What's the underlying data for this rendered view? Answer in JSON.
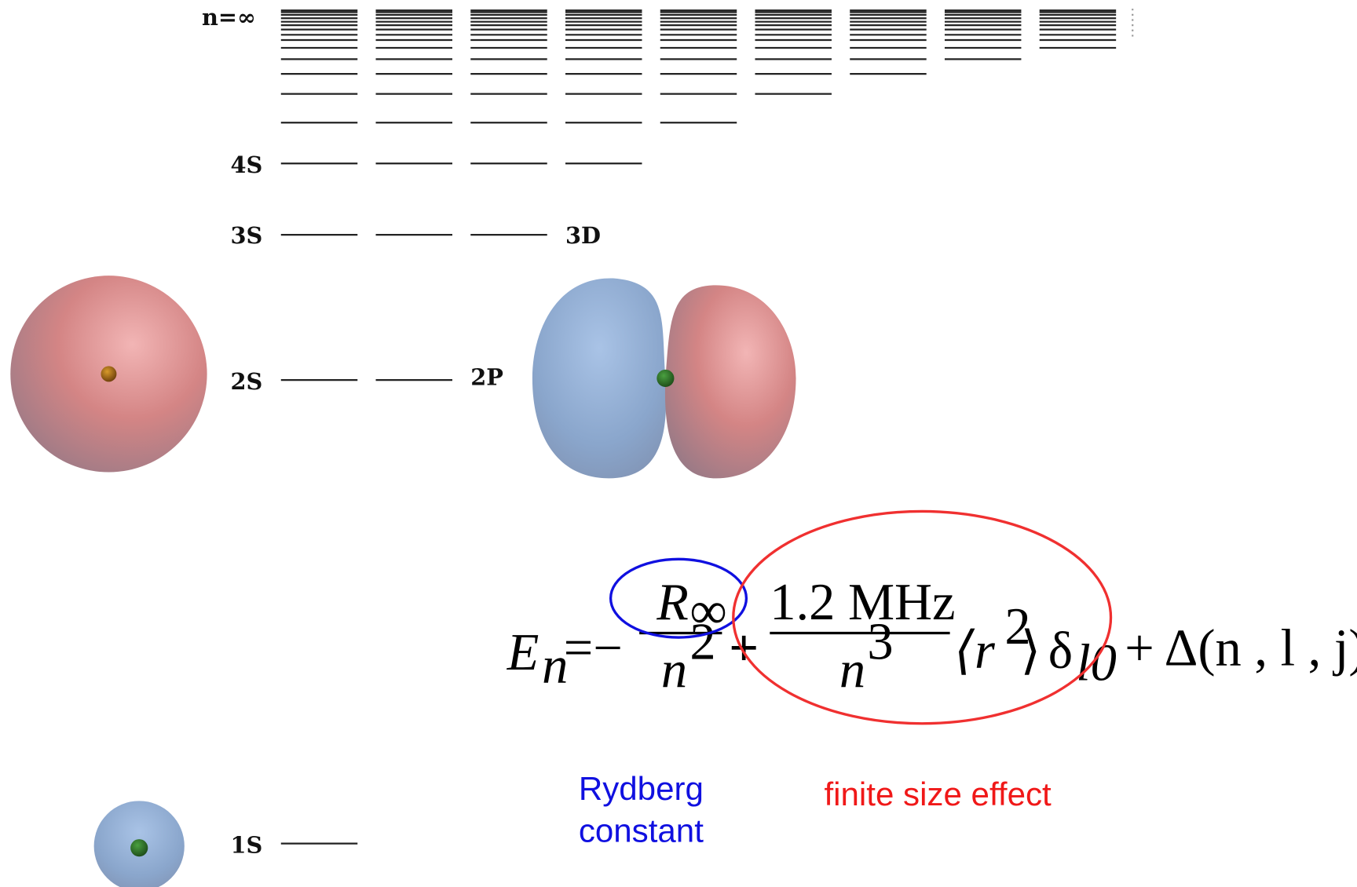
{
  "levels": {
    "n_inf": "n=∞",
    "s4": "4S",
    "s3": "3S",
    "d3": "3D",
    "s2": "2S",
    "p2": "2P",
    "s1": "1S"
  },
  "formula": {
    "lhs": "E",
    "lhs_sub": "n",
    "eq": "=−",
    "term1_num": "R",
    "term1_num_sub": "∞",
    "term1_den": "n",
    "term1_den_sup": "2",
    "plus": "+",
    "term2_num": "1.2 MHz",
    "term2_den": "n",
    "term2_den_sup": "3",
    "bracket_open": "⟨r",
    "bracket_sup": "2",
    "bracket_close": "⟩",
    "delta": "δ",
    "delta_sub": "l0",
    "tail": "+ Δ(n , l , j)"
  },
  "annotations": {
    "rydberg_line1": "Rydberg",
    "rydberg_line2": "constant",
    "finite_size": "finite size effect"
  }
}
